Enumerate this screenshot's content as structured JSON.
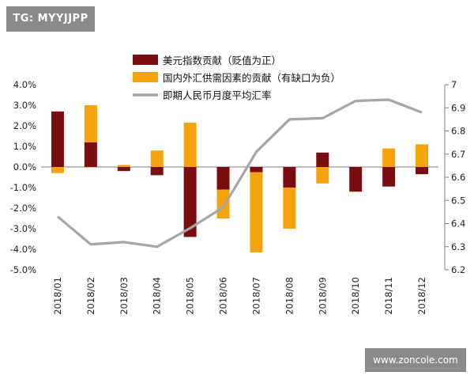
{
  "watermark_top": "TG: MYYJJPP",
  "watermark_bottom": "www.zoncole.com",
  "colors": {
    "usd_index": "#7b0d10",
    "domestic_fx": "#f5a30a",
    "rate_line": "#a6a6a6",
    "axis": "#808080"
  },
  "chart_data": {
    "type": "bar",
    "categories": [
      "2018/01",
      "2018/02",
      "2018/03",
      "2018/04",
      "2018/05",
      "2018/06",
      "2018/07",
      "2018/08",
      "2018/09",
      "2018/10",
      "2018/11",
      "2018/12"
    ],
    "left_axis": {
      "ylim": [
        -5.0,
        4.0
      ],
      "ticks": [
        "4.0%",
        "3.0%",
        "2.0%",
        "1.0%",
        "0.0%",
        "-1.0%",
        "-2.0%",
        "-3.0%",
        "-4.0%",
        "-5.0%"
      ],
      "tick_values": [
        4,
        3,
        2,
        1,
        0,
        -1,
        -2,
        -3,
        -4,
        -5
      ]
    },
    "right_axis": {
      "ylim": [
        6.2,
        7.0
      ],
      "ticks": [
        "7",
        "6.9",
        "6.8",
        "6.7",
        "6.6",
        "6.5",
        "6.4",
        "6.3",
        "6.2"
      ],
      "tick_values": [
        7,
        6.9,
        6.8,
        6.7,
        6.6,
        6.5,
        6.4,
        6.3,
        6.2
      ]
    },
    "series": [
      {
        "name": "美元指数贡献（贬值为正）",
        "type": "bar",
        "axis": "left",
        "values": [
          2.7,
          1.2,
          -0.2,
          -0.4,
          -3.4,
          -1.1,
          -0.25,
          -1.0,
          0.7,
          -1.2,
          -0.95,
          -0.35
        ]
      },
      {
        "name": "国内外汇供需因素的贡献（有缺口为负）",
        "type": "bar",
        "axis": "left",
        "values": [
          -0.3,
          1.8,
          0.1,
          0.8,
          2.15,
          -1.4,
          -3.9,
          -2.0,
          -0.8,
          0.0,
          0.9,
          1.1
        ]
      },
      {
        "name": "即期人民币月度平均汇率",
        "type": "line",
        "axis": "right",
        "values": [
          6.43,
          6.31,
          6.32,
          6.3,
          6.38,
          6.47,
          6.71,
          6.85,
          6.855,
          6.93,
          6.935,
          6.88
        ]
      }
    ],
    "legend_position": "top-center",
    "grid": false
  }
}
